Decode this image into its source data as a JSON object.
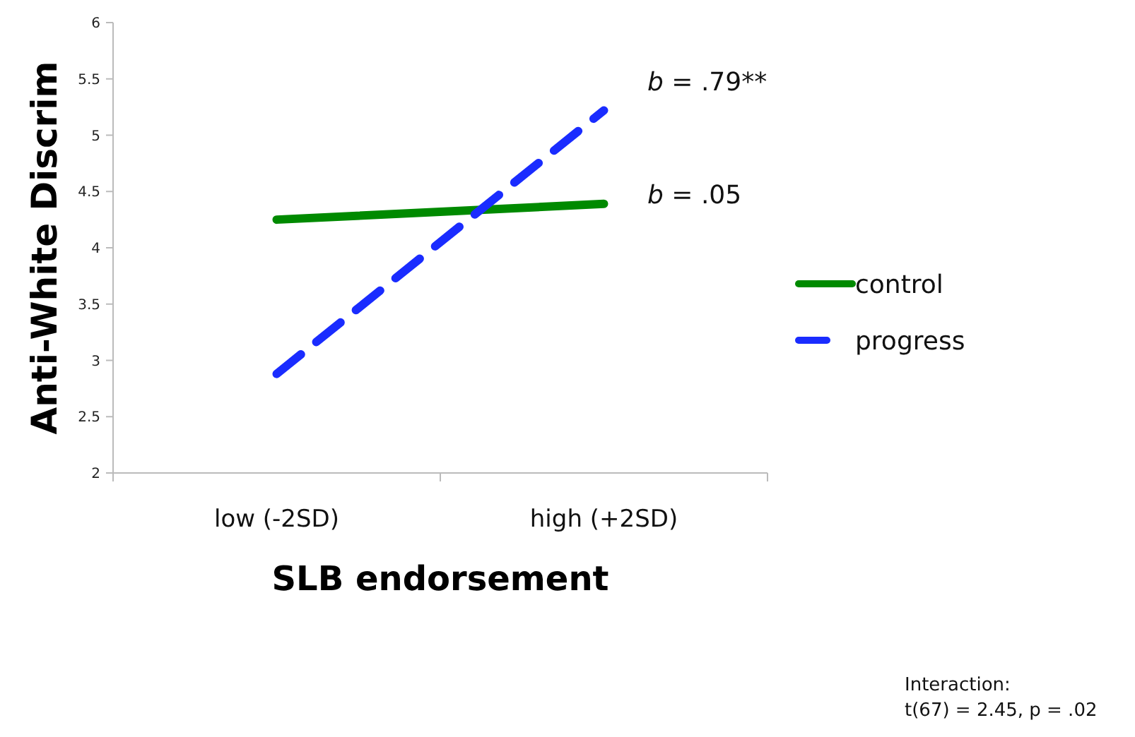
{
  "chart_data": {
    "type": "line",
    "xlabel": "SLB endorsement",
    "ylabel": "Anti-White Discrim",
    "categories": [
      "low (-2SD)",
      "high (+2SD)"
    ],
    "series": [
      {
        "name": "control",
        "color": "#008a00",
        "values": [
          4.25,
          4.39
        ],
        "line_style": "solid"
      },
      {
        "name": "progress",
        "color": "#1a2cff",
        "values": [
          2.88,
          5.22
        ],
        "line_style": "dashed"
      }
    ],
    "ylim": [
      2,
      6
    ],
    "yticks": [
      2,
      2.5,
      3,
      3.5,
      4,
      4.5,
      5,
      5.5,
      6
    ],
    "grid": false,
    "legend": "right",
    "marker": "none",
    "annotations": [
      "b = .79**",
      "b = .05",
      "Interaction:\nt(67) = 2.45, p = .02"
    ]
  }
}
